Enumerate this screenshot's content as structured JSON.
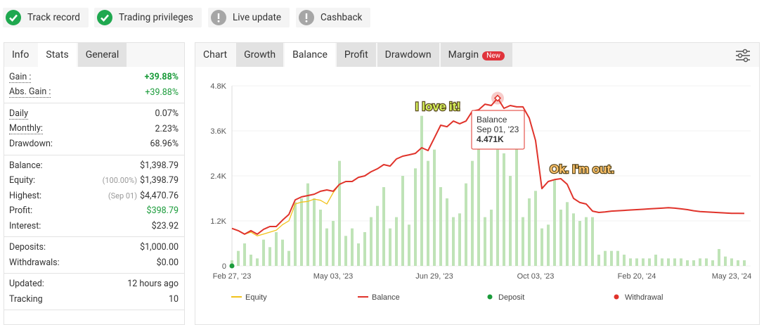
{
  "badges": [
    {
      "label": "Track record",
      "status": "ok"
    },
    {
      "label": "Trading privileges",
      "status": "ok"
    },
    {
      "label": "Live update",
      "status": "warn"
    },
    {
      "label": "Cashback",
      "status": "warn"
    }
  ],
  "left_panel": {
    "tabs": [
      "Info",
      "Stats",
      "General"
    ],
    "groups": [
      [
        {
          "label": "Gain :",
          "value": "+39.88%",
          "color": "#1a9b3a",
          "bold": true,
          "underline": true
        },
        {
          "label": "Abs. Gain :",
          "value": "+39.88%",
          "color": "#1a9b3a",
          "underline": true
        }
      ],
      [
        {
          "label": "Daily",
          "value": "0.07%",
          "underline": true
        },
        {
          "label": "Monthly:",
          "value": "2.23%",
          "underline": true
        },
        {
          "label": "Drawdown:",
          "value": "68.96%"
        }
      ],
      [
        {
          "label": "Balance:",
          "value": "$1,398.79"
        },
        {
          "label": "Equity:",
          "note": "(100.00%)",
          "value": "$1,398.79"
        },
        {
          "label": "Highest:",
          "note": "(Sep 01)",
          "value": "$4,470.76"
        },
        {
          "label": "Profit:",
          "value": "$398.79",
          "color": "#1a9b3a"
        },
        {
          "label": "Interest:",
          "value": "$23.92"
        }
      ],
      [
        {
          "label": "Deposits:",
          "value": "$1,000.00"
        },
        {
          "label": "Withdrawals:",
          "value": "$0.00"
        }
      ],
      [
        {
          "label": "Updated:",
          "value": "12 hours ago"
        },
        {
          "label": "Tracking",
          "value": "10"
        }
      ]
    ]
  },
  "chart_tabs": [
    "Chart",
    "Growth",
    "Balance",
    "Profit",
    "Drawdown",
    "Margin"
  ],
  "new_badge": "New",
  "chart_data": {
    "type": "line",
    "categories": [
      "Feb 27, '23",
      null,
      null,
      null,
      null,
      null,
      null,
      null,
      null,
      null,
      null,
      null,
      null,
      null,
      null,
      null,
      "May 03, '23",
      null,
      null,
      null,
      null,
      null,
      null,
      null,
      null,
      null,
      null,
      null,
      null,
      null,
      null,
      null,
      "Jun 29, '23",
      null,
      null,
      null,
      null,
      null,
      null,
      null,
      null,
      null,
      null,
      null,
      null,
      null,
      null,
      null,
      "Oct 03, '23",
      null,
      null,
      null,
      null,
      null,
      null,
      null,
      null,
      null,
      null,
      null,
      null,
      null,
      null,
      null,
      "Feb 20, '24",
      null,
      null,
      null,
      null,
      null,
      null,
      null,
      null,
      null,
      null,
      null,
      null,
      null,
      null,
      "May 23, '24",
      null,
      null
    ],
    "ylim": [
      0,
      4800
    ],
    "yticks": [
      0,
      {
        "value": 1200,
        "label": "1.2K"
      },
      {
        "value": 2400,
        "label": "2.4K"
      },
      {
        "value": 3600,
        "label": "3.6K"
      },
      {
        "value": 4800,
        "label": "4.8K"
      }
    ],
    "grid": true,
    "series": [
      {
        "name": "Equity",
        "color": "#f2c21b",
        "values": [
          1000,
          940,
          845,
          900,
          800,
          850,
          900,
          950,
          1100,
          1200,
          1650,
          1700,
          1720,
          1780,
          1750,
          1650,
          1950,
          2175,
          2250,
          2250,
          2360,
          2400,
          2510,
          2590,
          2700,
          2660,
          2850,
          2925,
          2960,
          3000,
          3150,
          3075,
          3410,
          3750,
          3710,
          3860,
          3790,
          3860,
          4125,
          4160,
          4310,
          4275,
          4471,
          4200,
          4275,
          4240,
          4240,
          3940,
          3340,
          2060,
          2250,
          2300,
          2325,
          2175,
          1800,
          1690,
          1650,
          1460,
          1425,
          1440,
          1460,
          1470,
          1480,
          1490,
          1500,
          1510,
          1520,
          1530,
          1540,
          1550,
          1540,
          1520,
          1500,
          1470,
          1450,
          1440,
          1430,
          1420,
          1410,
          1400,
          1400,
          1399
        ]
      },
      {
        "name": "Balance",
        "color": "#e0332b",
        "values": [
          1000,
          940,
          845,
          940,
          845,
          975,
          1050,
          1050,
          1220,
          1370,
          1760,
          1840,
          1875,
          1910,
          1990,
          2025,
          1990,
          2175,
          2250,
          2250,
          2360,
          2400,
          2510,
          2590,
          2700,
          2660,
          2850,
          2925,
          2960,
          3000,
          3150,
          3075,
          3410,
          3750,
          3710,
          3860,
          3790,
          3860,
          4125,
          4160,
          4310,
          4275,
          4471,
          4200,
          4275,
          4240,
          4240,
          3940,
          3340,
          2060,
          2250,
          2300,
          2325,
          2175,
          1800,
          1690,
          1650,
          1460,
          1425,
          1440,
          1460,
          1470,
          1480,
          1490,
          1500,
          1510,
          1520,
          1530,
          1540,
          1550,
          1540,
          1520,
          1500,
          1470,
          1450,
          1440,
          1430,
          1420,
          1410,
          1400,
          1400,
          1399
        ]
      }
    ],
    "bars": {
      "color": "#bfe3b7",
      "values": [
        150,
        400,
        600,
        300,
        200,
        700,
        500,
        900,
        700,
        400,
        1700,
        1800,
        2200,
        1800,
        1500,
        1000,
        1200,
        2800,
        800,
        1000,
        600,
        900,
        1300,
        1600,
        2100,
        1000,
        1300,
        2400,
        1100,
        2600,
        4000,
        2800,
        3100,
        2100,
        1800,
        1300,
        1400,
        2200,
        2800,
        3600,
        1300,
        1500,
        3100,
        3000,
        2400,
        3600,
        1300,
        1800,
        2000,
        1000,
        1100,
        2300,
        1500,
        1700,
        1400,
        1200,
        1300,
        1300,
        300,
        400,
        400,
        400,
        300,
        200,
        200,
        200,
        200,
        300,
        200,
        200,
        200,
        200,
        150,
        150,
        200,
        200,
        150,
        450,
        250,
        200,
        150,
        150
      ]
    },
    "legend": [
      {
        "name": "Equity",
        "color": "#f2c21b",
        "symbol": "line"
      },
      {
        "name": "Balance",
        "color": "#e0332b",
        "symbol": "line"
      },
      {
        "name": "Deposit",
        "color": "#1a9b3a",
        "symbol": "dot"
      },
      {
        "name": "Withdrawal",
        "color": "#e0332b",
        "symbol": "dot"
      }
    ],
    "annotations": [
      {
        "text": "I love it!",
        "color": "#d7f25a"
      },
      {
        "text": "Ok. I'm out.",
        "color": "#ffc36b"
      }
    ],
    "tooltip": {
      "title": "Balance",
      "date": "Sep 01, '23",
      "value": "4.471K"
    }
  }
}
